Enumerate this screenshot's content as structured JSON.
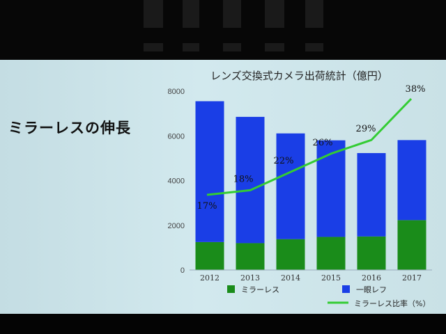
{
  "slide": {
    "heading": "ミラーレスの伸長"
  },
  "chart_data": {
    "type": "bar",
    "stacked": true,
    "title": "レンズ交換式カメラ出荷統計（億円）",
    "categories": [
      "2012",
      "2013",
      "2014",
      "2015",
      "2016",
      "2017"
    ],
    "ylim": [
      0,
      8000
    ],
    "yticks": [
      "0",
      "2000",
      "4000",
      "6000",
      "8000"
    ],
    "series": [
      {
        "name": "ミラーレス",
        "color": "#1a8c1a",
        "values": [
          1250,
          1200,
          1380,
          1480,
          1500,
          2230
        ]
      },
      {
        "name": "一眼レフ",
        "color": "#1a3ee6",
        "values": [
          6300,
          5650,
          4730,
          4320,
          3730,
          3580
        ]
      }
    ],
    "line_series": {
      "name": "ミラーレス比率（%）",
      "color": "#33cc33",
      "data_labels": [
        "17%",
        "18%",
        "22%",
        "26%",
        "29%",
        "38%"
      ],
      "values": [
        17,
        18,
        22,
        26,
        29,
        38
      ]
    },
    "legend_position": "bottom",
    "grid": false
  }
}
